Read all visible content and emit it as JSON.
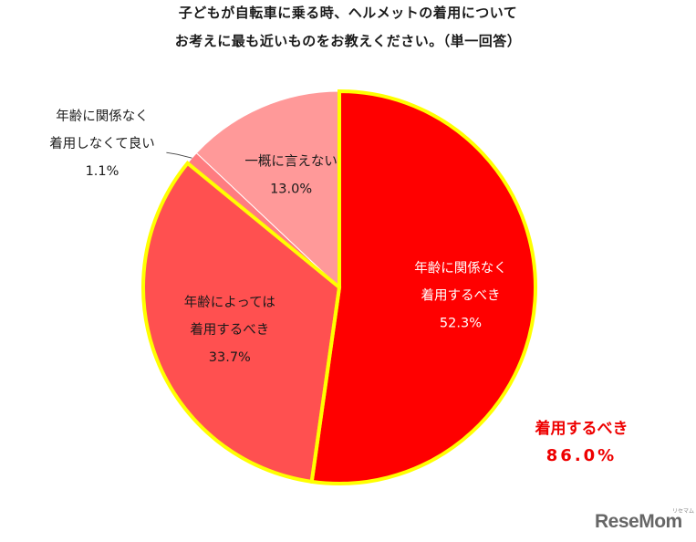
{
  "title": {
    "line1": "子どもが自転車に乗る時、ヘルメットの着用について",
    "line2": "お考えに最も近いものをお教えください。（単一回答）"
  },
  "chart_data": {
    "type": "pie",
    "title": "子どもが自転車に乗る時、ヘルメットの着用についてお考えに最も近いものをお教えください。（単一回答）",
    "slices": [
      {
        "label_lines": [
          "年齢に関係なく",
          "着用するべき"
        ],
        "value": 52.3,
        "value_label": "52.3%",
        "color": "#ff0000",
        "text_color": "#ffffff"
      },
      {
        "label_lines": [
          "年齢によっては",
          "着用するべき"
        ],
        "value": 33.7,
        "value_label": "33.7%",
        "color": "#ff5050",
        "text_color": "#1a1a1a"
      },
      {
        "label_lines": [
          "年齢に関係なく",
          "着用しなくて良い"
        ],
        "value": 1.1,
        "value_label": "1.1%",
        "color": "#ff7c80",
        "text_color": "#1a1a1a"
      },
      {
        "label_lines": [
          "一概に言えない"
        ],
        "value": 13.0,
        "value_label": "13.0%",
        "color": "#ff9999",
        "text_color": "#1a1a1a"
      }
    ],
    "highlight_color": "#ffff00",
    "summary": {
      "label": "着用するべき",
      "value": "86.0%",
      "color": "#ee0000"
    }
  },
  "logo": {
    "text": "ReseMom",
    "kana": "リセマム"
  }
}
